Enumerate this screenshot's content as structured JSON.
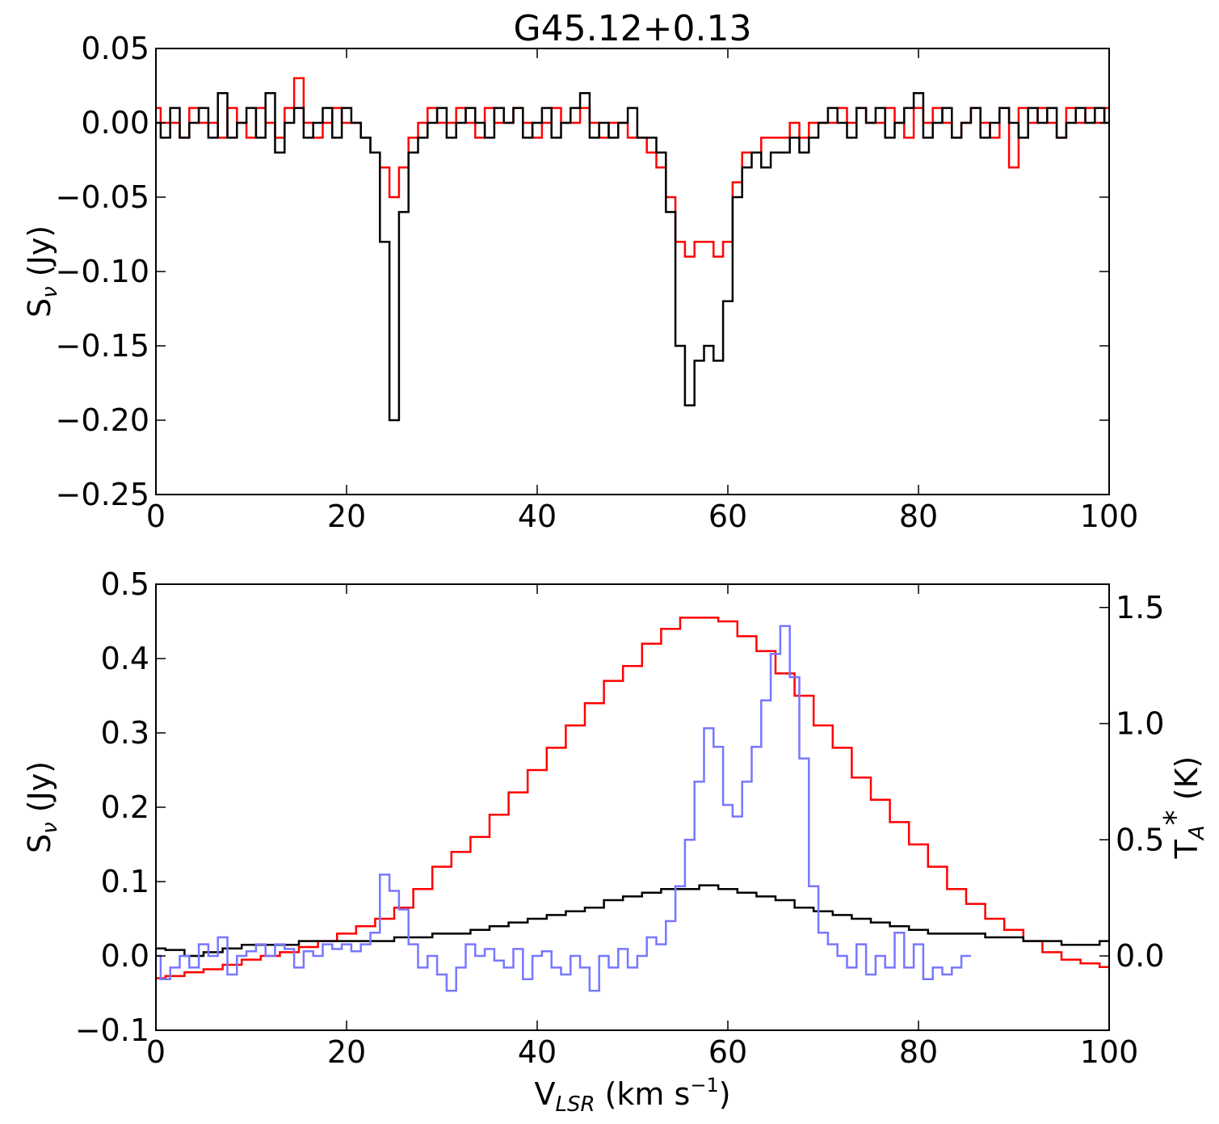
{
  "chart_data": [
    {
      "type": "line",
      "step": true,
      "title": "G45.12+0.13",
      "ylabel": [
        "S",
        "ν",
        " (Jy)"
      ],
      "x": [
        0,
        1,
        2,
        3,
        4,
        5,
        6,
        7,
        8,
        9,
        10,
        11,
        12,
        13,
        14,
        15,
        16,
        17,
        18,
        19,
        20,
        21,
        22,
        23,
        24,
        25,
        26,
        27,
        28,
        29,
        30,
        31,
        32,
        33,
        34,
        35,
        36,
        37,
        38,
        39,
        40,
        41,
        42,
        43,
        44,
        45,
        46,
        47,
        48,
        49,
        50,
        51,
        52,
        53,
        54,
        55,
        56,
        57,
        58,
        59,
        60,
        61,
        62,
        63,
        64,
        65,
        66,
        67,
        68,
        69,
        70,
        71,
        72,
        73,
        74,
        75,
        76,
        77,
        78,
        79,
        80,
        81,
        82,
        83,
        84,
        85,
        86,
        87,
        88,
        89,
        90,
        91,
        92,
        93,
        94,
        95,
        96,
        97,
        98,
        99,
        100
      ],
      "series": [
        {
          "color": "#ff0000",
          "values": [
            0.01,
            0.0,
            0.0,
            -0.01,
            0.01,
            0.0,
            0.0,
            -0.01,
            0.01,
            0.0,
            -0.01,
            0.01,
            0.0,
            -0.01,
            0.01,
            0.03,
            0.0,
            -0.01,
            0.0,
            0.01,
            0.0,
            0.0,
            -0.01,
            -0.02,
            -0.03,
            -0.05,
            -0.03,
            -0.01,
            0.0,
            0.01,
            0.0,
            0.0,
            0.01,
            0.0,
            -0.01,
            0.01,
            0.0,
            0.0,
            0.01,
            0.0,
            -0.01,
            0.0,
            0.01,
            0.0,
            0.0,
            0.01,
            0.0,
            -0.01,
            0.0,
            0.0,
            -0.01,
            -0.01,
            -0.02,
            -0.03,
            -0.05,
            -0.08,
            -0.09,
            -0.08,
            -0.08,
            -0.09,
            -0.08,
            -0.04,
            -0.02,
            -0.02,
            -0.01,
            -0.01,
            -0.01,
            0.0,
            -0.01,
            0.0,
            0.0,
            0.0,
            0.01,
            0.0,
            0.01,
            0.0,
            0.0,
            0.01,
            0.0,
            -0.01,
            0.01,
            0.0,
            0.01,
            0.0,
            -0.01,
            0.0,
            0.01,
            0.0,
            -0.01,
            0.01,
            -0.03,
            0.01,
            0.0,
            0.01,
            0.0,
            -0.01,
            0.01,
            0.0,
            0.01,
            0.0,
            0.01
          ]
        },
        {
          "color": "#000000",
          "values": [
            0.0,
            -0.01,
            0.01,
            -0.01,
            0.0,
            0.01,
            -0.01,
            0.02,
            -0.01,
            0.0,
            0.01,
            -0.01,
            0.02,
            -0.02,
            0.0,
            0.01,
            -0.01,
            0.0,
            0.01,
            -0.01,
            0.01,
            0.0,
            -0.01,
            -0.02,
            -0.08,
            -0.2,
            -0.06,
            -0.02,
            -0.01,
            0.0,
            0.01,
            -0.01,
            0.0,
            0.01,
            0.0,
            -0.01,
            0.01,
            0.0,
            0.01,
            -0.01,
            0.0,
            0.01,
            -0.01,
            0.0,
            0.01,
            0.02,
            -0.01,
            0.0,
            -0.01,
            0.0,
            0.01,
            -0.01,
            -0.01,
            -0.02,
            -0.06,
            -0.15,
            -0.19,
            -0.16,
            -0.15,
            -0.16,
            -0.12,
            -0.05,
            -0.03,
            -0.02,
            -0.03,
            -0.02,
            -0.02,
            -0.01,
            -0.02,
            -0.01,
            0.0,
            0.01,
            0.0,
            -0.01,
            0.01,
            0.0,
            0.01,
            -0.01,
            0.0,
            0.01,
            0.02,
            -0.01,
            0.0,
            0.01,
            -0.01,
            0.0,
            0.01,
            -0.01,
            0.0,
            0.01,
            0.0,
            -0.01,
            0.01,
            0.0,
            0.01,
            -0.01,
            0.0,
            0.01,
            0.0,
            0.01,
            0.0
          ]
        }
      ],
      "xlim": [
        0,
        100
      ],
      "xticks": [
        0,
        20,
        40,
        60,
        80,
        100
      ],
      "ylim": [
        -0.25,
        0.05
      ],
      "yticks": [
        {
          "value": -0.25,
          "label": "−0.25"
        },
        {
          "value": -0.2,
          "label": "−0.20"
        },
        {
          "value": -0.15,
          "label": "−0.15"
        },
        {
          "value": -0.1,
          "label": "−0.10"
        },
        {
          "value": -0.05,
          "label": "−0.05"
        },
        {
          "value": 0,
          "label": "0.00"
        },
        0.05
      ]
    },
    {
      "type": "line",
      "step": true,
      "xlabel": [
        "V",
        "LSR",
        " (km s",
        "−1",
        ")"
      ],
      "ylabel": [
        "S",
        "ν",
        " (Jy)"
      ],
      "y2label": [
        "T",
        "A",
        "*",
        " (K)"
      ],
      "x": [
        0,
        2,
        4,
        6,
        8,
        10,
        12,
        14,
        16,
        18,
        20,
        22,
        24,
        26,
        28,
        30,
        32,
        34,
        36,
        38,
        40,
        42,
        44,
        46,
        48,
        50,
        52,
        54,
        56,
        58,
        60,
        62,
        64,
        66,
        68,
        70,
        72,
        74,
        76,
        78,
        80,
        82,
        84,
        86,
        88,
        90,
        92,
        94,
        96,
        98,
        100
      ],
      "series": [
        {
          "color": "#ff0000",
          "values": [
            -0.03,
            -0.027,
            -0.022,
            -0.018,
            -0.012,
            -0.005,
            0.0,
            0.005,
            0.012,
            0.02,
            0.03,
            0.04,
            0.05,
            0.065,
            0.09,
            0.12,
            0.14,
            0.16,
            0.19,
            0.22,
            0.25,
            0.28,
            0.31,
            0.34,
            0.37,
            0.39,
            0.42,
            0.44,
            0.455,
            0.455,
            0.45,
            0.43,
            0.41,
            0.38,
            0.35,
            0.31,
            0.28,
            0.24,
            0.21,
            0.18,
            0.15,
            0.12,
            0.09,
            0.07,
            0.05,
            0.035,
            0.02,
            0.005,
            -0.005,
            -0.01,
            -0.015
          ]
        },
        {
          "color": "#000000",
          "values": [
            0.01,
            0.008,
            0.0,
            0.005,
            0.01,
            0.015,
            0.015,
            0.015,
            0.02,
            0.02,
            0.02,
            0.02,
            0.02,
            0.025,
            0.025,
            0.03,
            0.03,
            0.035,
            0.04,
            0.045,
            0.05,
            0.055,
            0.06,
            0.065,
            0.075,
            0.08,
            0.085,
            0.09,
            0.09,
            0.095,
            0.09,
            0.085,
            0.08,
            0.075,
            0.065,
            0.06,
            0.055,
            0.05,
            0.045,
            0.04,
            0.035,
            0.03,
            0.03,
            0.03,
            0.025,
            0.025,
            0.02,
            0.02,
            0.015,
            0.015,
            0.02
          ]
        },
        {
          "color": "#7777ff",
          "axis": "y2",
          "x": [
            0,
            1,
            2,
            3,
            4,
            5,
            6,
            7,
            8,
            9,
            10,
            11,
            12,
            13,
            14,
            15,
            16,
            17,
            18,
            19,
            20,
            21,
            22,
            23,
            24,
            25,
            26,
            27,
            28,
            29,
            30,
            31,
            32,
            33,
            34,
            35,
            36,
            37,
            38,
            39,
            40,
            41,
            42,
            43,
            44,
            45,
            46,
            47,
            48,
            49,
            50,
            51,
            52,
            53,
            54,
            55,
            56,
            57,
            58,
            59,
            60,
            61,
            62,
            63,
            64,
            65,
            66,
            67,
            68,
            69,
            70,
            71,
            72,
            73,
            74,
            75,
            76,
            77,
            78,
            79,
            80,
            81,
            82,
            83,
            84,
            85
          ],
          "values": [
            0.0,
            -0.1,
            -0.05,
            0.0,
            -0.05,
            0.05,
            0.0,
            0.08,
            -0.08,
            0.0,
            0.02,
            0.05,
            0.0,
            0.05,
            0.03,
            -0.05,
            0.02,
            0.0,
            0.05,
            0.03,
            0.05,
            0.02,
            0.05,
            0.1,
            0.35,
            0.28,
            0.2,
            0.05,
            -0.05,
            0.0,
            -0.08,
            -0.15,
            -0.05,
            0.05,
            0.0,
            0.03,
            -0.02,
            -0.05,
            0.03,
            -0.1,
            0.0,
            0.02,
            -0.05,
            -0.08,
            0.0,
            -0.05,
            -0.15,
            0.0,
            -0.05,
            0.03,
            -0.05,
            0.0,
            0.08,
            0.05,
            0.15,
            0.3,
            0.5,
            0.75,
            0.98,
            0.9,
            0.65,
            0.6,
            0.75,
            0.9,
            1.1,
            1.3,
            1.42,
            1.2,
            0.85,
            0.3,
            0.1,
            0.05,
            0.0,
            -0.05,
            0.05,
            -0.08,
            0.0,
            -0.05,
            0.1,
            -0.05,
            0.05,
            -0.1,
            -0.05,
            -0.08,
            -0.05,
            0.0
          ]
        }
      ],
      "xlim": [
        0,
        100
      ],
      "xticks": [
        0,
        20,
        40,
        60,
        80,
        100
      ],
      "ylim": [
        -0.1,
        0.5
      ],
      "yticks": [
        {
          "value": -0.1,
          "label": "−0.1"
        },
        {
          "value": 0,
          "label": "0.0"
        },
        0.1,
        0.2,
        0.3,
        0.4,
        0.5
      ],
      "y2lim": [
        -0.32,
        1.6
      ],
      "y2ticks": [
        {
          "value": 0,
          "label": "0.0"
        },
        0.5,
        {
          "value": 1,
          "label": "1.0"
        },
        1.5
      ]
    }
  ]
}
